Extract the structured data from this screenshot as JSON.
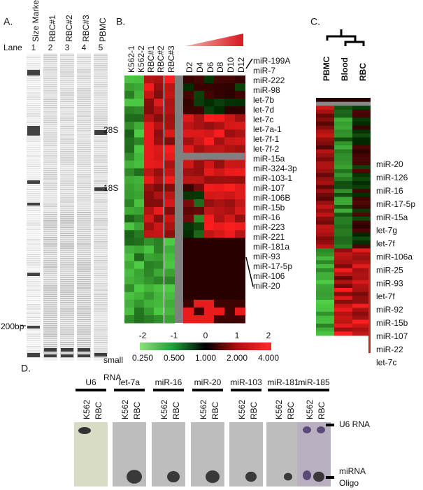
{
  "panels": {
    "A": {
      "label": "A.",
      "lane_title": "Lane",
      "lanes": [
        {
          "name": "Size Marker",
          "number": 1
        },
        {
          "name": "RBC#1",
          "number": 2
        },
        {
          "name": "RBC#2",
          "number": 3
        },
        {
          "name": "RBC#3",
          "number": 4
        },
        {
          "name": "PBMC",
          "number": 5
        }
      ],
      "bands": [
        "28S",
        "18S",
        "200bp",
        "small",
        "RNA"
      ]
    },
    "B": {
      "label": "B.",
      "samples": [
        "K562-1",
        "K562-2",
        "RBC#1",
        "RBC#2",
        "RBC#3"
      ],
      "days": [
        "D2",
        "D4",
        "D6",
        "D8",
        "D10",
        "D12"
      ],
      "mirnas": [
        "miR-199A",
        "miR-7",
        "miR-222",
        "miR-98",
        "let-7b",
        "let-7d",
        "let-7c",
        "let-7a-1",
        "let-7f-1",
        "let-7f-2",
        "miR-15a",
        "miR-324-3p",
        "miR-103-1",
        "miR-107",
        "miR-106B",
        "miR-15b",
        "miR-16",
        "miR-223",
        "miR-221",
        "miR-181a",
        "miR-93",
        "miR-17-5p",
        "miR-106",
        "miR-20"
      ],
      "scale_ticks": [
        -2,
        -1,
        0,
        1,
        2
      ],
      "fold_ticks": [
        "0.250",
        "0.500",
        "1.000",
        "2.000",
        "4.000"
      ]
    },
    "C": {
      "label": "C.",
      "groups": [
        {
          "name": "PBMC",
          "color": "#29a9e0"
        },
        {
          "name": "Blood",
          "color": "#c1272d"
        },
        {
          "name": "RBC",
          "color": "#c1272d"
        }
      ],
      "mirnas": [
        "miR-20",
        "miR-126",
        "miR-16",
        "miR-17-5p",
        "miR-15a",
        "let-7g",
        "let-7f",
        "miR-106a",
        "miR-25",
        "miR-93",
        "let-7f",
        "miR-92",
        "miR-15b",
        "miR-107",
        "miR-22",
        "let-7c"
      ]
    },
    "D": {
      "label": "D.",
      "probes": [
        "U6",
        "let-7a",
        "miR-16",
        "miR-20",
        "miR-103",
        "miR-181",
        "miR-185"
      ],
      "lanes": [
        "K562",
        "RBC"
      ],
      "markers": [
        "U6 RNA",
        "miRNA",
        "Oligo"
      ]
    }
  }
}
